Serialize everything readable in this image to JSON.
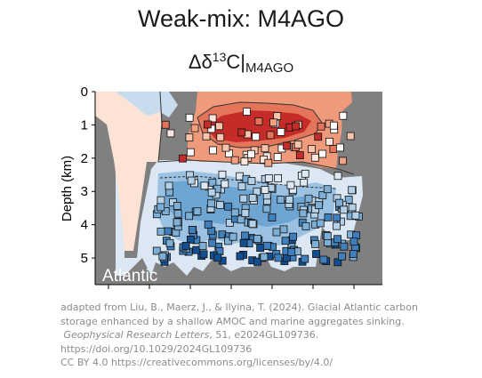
{
  "title": "Weak-mix: M4AGO",
  "subtitle": {
    "prefix": "Δδ",
    "superscript": "13",
    "mid": "C|",
    "subscript": "M4AGO"
  },
  "chart_data": {
    "type": "heatmap",
    "description_region": "Atlantic",
    "ylabel": "Depth (km)",
    "yticks": [
      "0",
      "1",
      "2",
      "3",
      "4",
      "5"
    ],
    "ylim": [
      5.8,
      0
    ],
    "y_inverted": true,
    "colorscale": {
      "negative": [
        "#dde9f4",
        "#b5d1e8",
        "#7eafd6",
        "#3f7fbb",
        "#124f90"
      ],
      "positive": [
        "#fde6dc",
        "#f8c3ab",
        "#f2a182",
        "#e4745a",
        "#c42b29"
      ]
    },
    "land_color": "#808080",
    "marker_style": "square with black outline, filled with observed anomaly color"
  },
  "caption": {
    "line1": "adapted from Liu, B., Maerz, J., & Ilyina, T. (2024). Glacial Atlantic carbon",
    "line2": "storage enhanced by a shallow AMOC and marine aggregates sinking.",
    "journal": "Geophysical Research Letters",
    "journal_rest": ", 51, e2024GL109736.",
    "line4": "https://doi.org/10.1029/2024GL109736",
    "line5": "CC BY 4.0 https://creativecommons.org/licenses/by/4.0/"
  }
}
